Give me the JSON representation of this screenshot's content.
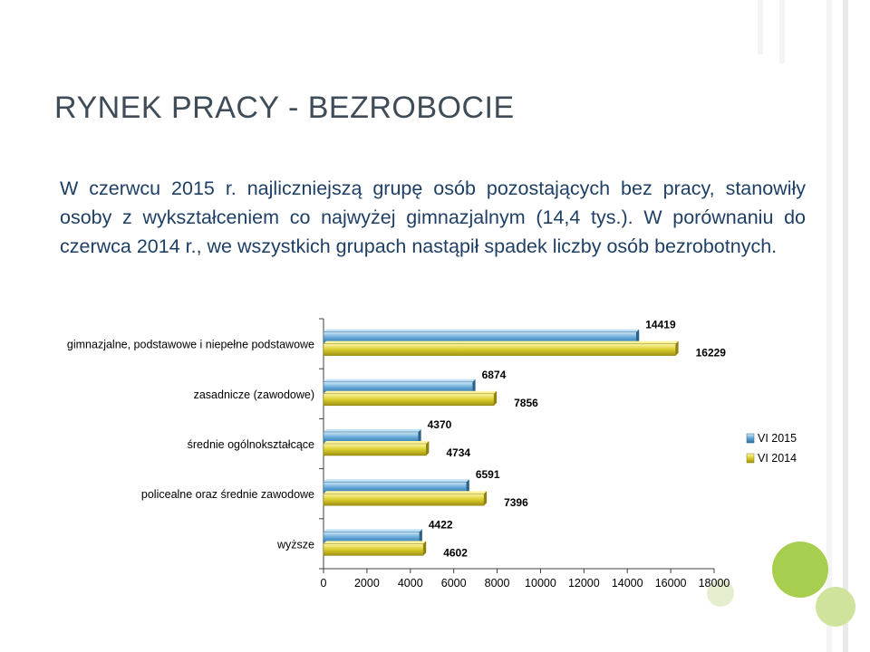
{
  "slide": {
    "title": "Rynek pracy - bezrobocie",
    "body": "W czerwcu 2015 r. najliczniejszą grupę osób pozostających bez pracy, stanowiły osoby z wykształceniem co najwyżej gimnazjalnym (14,4 tys.). W porównaniu do czerwca 2014 r., we wszystkich grupach nastąpił spadek liczby osób bezrobotnych."
  },
  "colors": {
    "series_2015": "#5fa4d6",
    "series_2014": "#d9cc2c",
    "accent": "#9ec93c",
    "title_text": "#3f4c57",
    "body_text": "#1e3f66"
  },
  "chart_data": {
    "type": "bar",
    "orientation": "horizontal",
    "categories": [
      "gimnazjalne, podstawowe i niepełne podstawowe",
      "zasadnicze (zawodowe)",
      "średnie ogólnokształcące",
      "policealne oraz średnie zawodowe",
      "wyższe"
    ],
    "series": [
      {
        "name": "VI 2015",
        "values": [
          14419,
          6874,
          4370,
          6591,
          4422
        ]
      },
      {
        "name": "VI 2014",
        "values": [
          16229,
          7856,
          4734,
          7396,
          4602
        ]
      }
    ],
    "xlim": [
      0,
      18000
    ],
    "x_ticks": [
      "0",
      "2000",
      "4000",
      "6000",
      "8000",
      "10000",
      "12000",
      "14000",
      "16000",
      "18000"
    ],
    "grid": false,
    "legend_position": "right"
  }
}
